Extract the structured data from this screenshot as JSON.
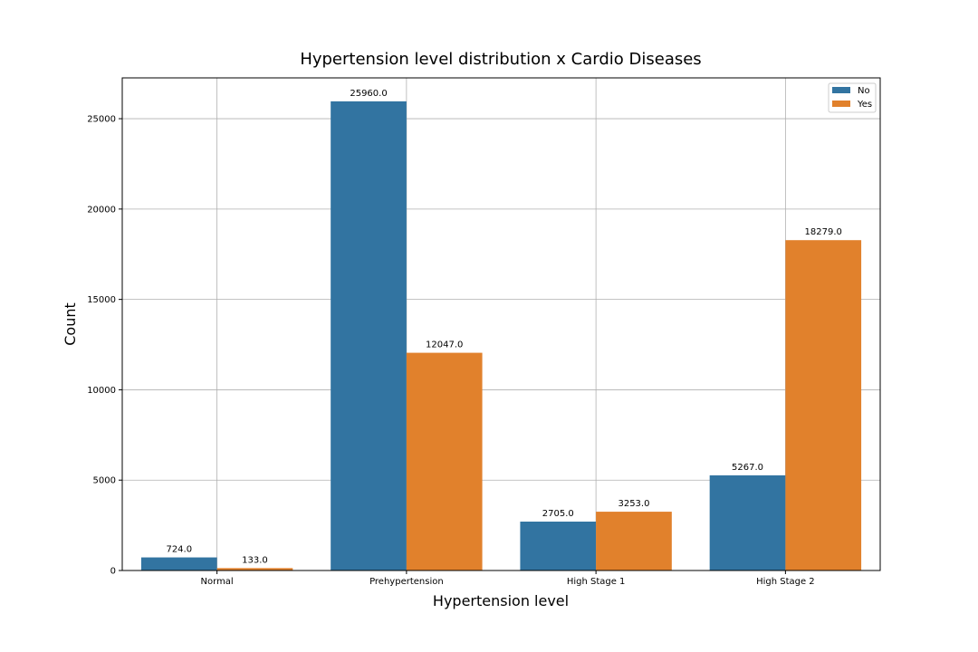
{
  "chart_data": {
    "type": "bar",
    "title": "Hypertension level distribution x Cardio Diseases",
    "xlabel": "Hypertension level",
    "ylabel": "Count",
    "categories": [
      "Normal",
      "Prehypertension",
      "High Stage 1",
      "High Stage 2"
    ],
    "series": [
      {
        "name": "No",
        "color": "#3274a1",
        "values": [
          724,
          25960,
          2705,
          5267
        ],
        "labels": [
          "724.0",
          "25960.0",
          "2705.0",
          "5267.0"
        ]
      },
      {
        "name": "Yes",
        "color": "#e1812c",
        "values": [
          133,
          12047,
          3253,
          18279
        ],
        "labels": [
          "133.0",
          "12047.0",
          "3253.0",
          "18279.0"
        ]
      }
    ],
    "ylim": [
      0,
      27258
    ],
    "yticks": [
      0,
      5000,
      10000,
      15000,
      20000,
      25000
    ],
    "ytick_labels": [
      "0",
      "5000",
      "10000",
      "15000",
      "20000",
      "25000"
    ],
    "grid": true,
    "legend_position": "top-right"
  }
}
